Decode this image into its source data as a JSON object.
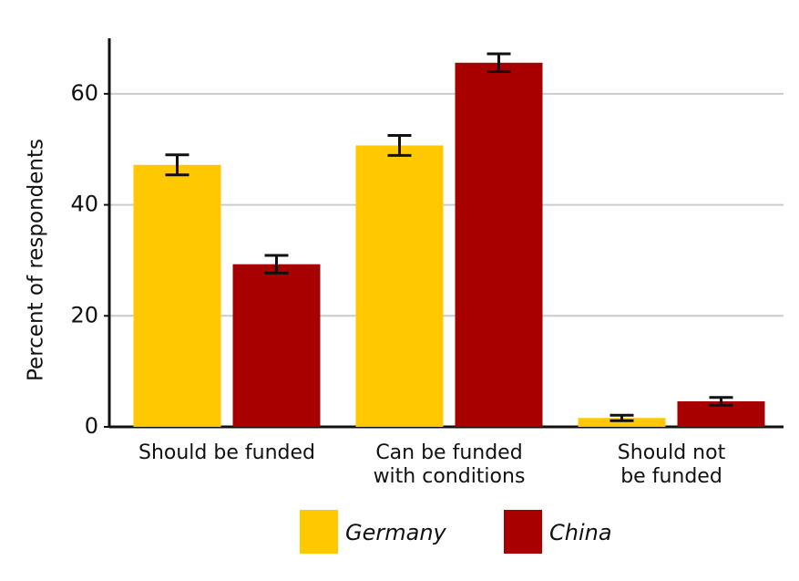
{
  "chart_data": {
    "type": "bar",
    "categories": [
      "Should be funded",
      "Can be funded\nwith conditions",
      "Should not\nbe funded"
    ],
    "series": [
      {
        "name": "Germany",
        "color": "#ffc800",
        "values": [
          47.2,
          50.7,
          1.6
        ],
        "errors": [
          1.8,
          1.8,
          0.5
        ]
      },
      {
        "name": "China",
        "color": "#a80000",
        "values": [
          29.3,
          65.6,
          4.6
        ],
        "errors": [
          1.6,
          1.6,
          0.7
        ]
      }
    ],
    "y_label": "Percent of respondents",
    "ylim": [
      0,
      70
    ],
    "yticks": [
      0,
      20,
      40,
      60
    ],
    "grid": true
  }
}
